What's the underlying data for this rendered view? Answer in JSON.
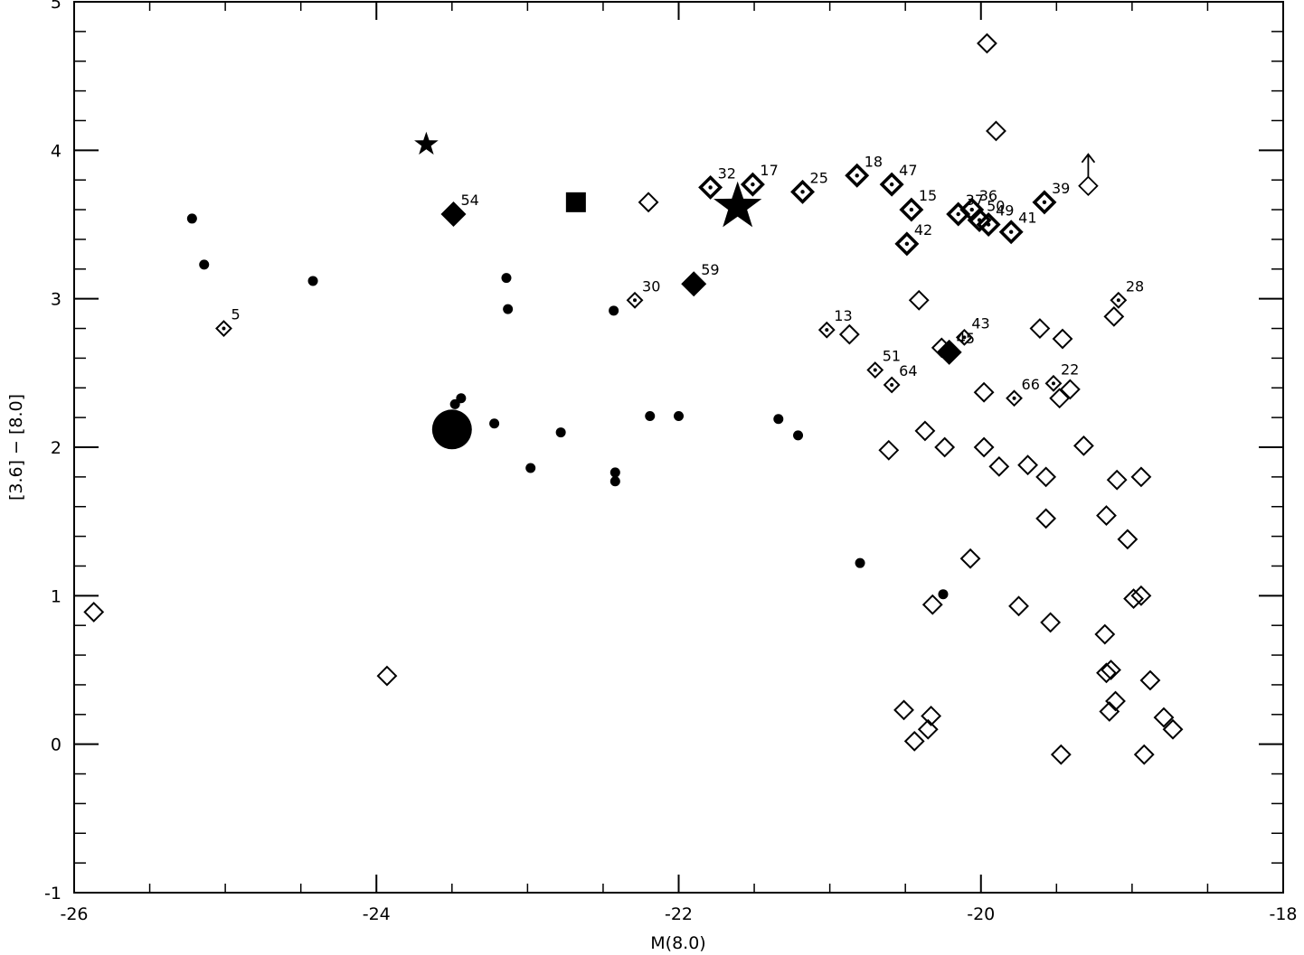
{
  "chart_data": {
    "type": "scatter",
    "xlabel": "M(8.0)",
    "ylabel": "[3.6] − [8.0]",
    "xlim": [
      -26,
      -18
    ],
    "ylim": [
      -1,
      5
    ],
    "xticks": [
      -26,
      -24,
      -22,
      -20,
      -18
    ],
    "yticks": [
      -1,
      0,
      1,
      2,
      3,
      4,
      5
    ],
    "series": [
      {
        "marker": "dot",
        "color": "#000000",
        "x": [
          -25.22,
          -25.14,
          -24.42,
          -23.48,
          -23.44,
          -23.22,
          -23.14,
          -23.13,
          -22.98,
          -22.78,
          -22.43,
          -22.42,
          -22.42,
          -22.19,
          -22.0,
          -21.34,
          -21.21,
          -20.8,
          -20.25
        ],
        "values": [
          3.54,
          3.23,
          3.12,
          2.29,
          2.33,
          2.16,
          3.14,
          2.93,
          1.86,
          2.1,
          2.92,
          1.83,
          1.77,
          2.21,
          2.21,
          2.19,
          2.08,
          1.22,
          1.01
        ]
      },
      {
        "marker": "open-diamond",
        "color": "#000000",
        "x": [
          -25.87,
          -23.93,
          -22.2,
          -19.96,
          -19.9,
          -20.41,
          -20.87,
          -19.61,
          -19.46,
          -19.12,
          -20.26,
          -19.98,
          -19.48,
          -19.41,
          -20.61,
          -20.37,
          -20.24,
          -19.98,
          -19.88,
          -19.69,
          -19.57,
          -19.32,
          -19.1,
          -18.94,
          -19.57,
          -19.17,
          -19.03,
          -20.07,
          -20.32,
          -19.75,
          -18.99,
          -18.94,
          -19.54,
          -19.18,
          -19.17,
          -19.14,
          -18.88,
          -19.11,
          -19.15,
          -20.51,
          -20.33,
          -20.35,
          -20.44,
          -18.79,
          -18.73,
          -19.47,
          -18.92
        ],
        "values": [
          0.89,
          0.46,
          3.65,
          4.72,
          4.13,
          2.99,
          2.76,
          2.8,
          2.73,
          2.88,
          2.67,
          2.37,
          2.33,
          2.39,
          1.98,
          2.11,
          2.0,
          2.0,
          1.87,
          1.88,
          1.8,
          2.01,
          1.78,
          1.8,
          1.52,
          1.54,
          1.38,
          1.25,
          0.94,
          0.93,
          0.98,
          1.0,
          0.82,
          0.74,
          0.48,
          0.5,
          0.43,
          0.29,
          0.22,
          0.23,
          0.19,
          0.1,
          0.02,
          0.18,
          0.1,
          -0.07,
          -0.07
        ]
      },
      {
        "marker": "lower-limit-diamond",
        "color": "#000000",
        "x": [
          -19.29
        ],
        "values": [
          3.76
        ]
      },
      {
        "marker": "dotted-diamond",
        "color": "#000000",
        "x": [
          -25.01,
          -22.29,
          -21.02,
          -20.7,
          -20.59,
          -20.11,
          -19.78,
          -19.52,
          -19.09
        ],
        "values": [
          2.8,
          2.99,
          2.79,
          2.52,
          2.42,
          2.74,
          2.33,
          2.43,
          2.99
        ],
        "labels": [
          "5",
          "30",
          "13",
          "51",
          "64",
          "43",
          "66",
          "22",
          "28"
        ]
      },
      {
        "marker": "bold-dotted-diamond",
        "color": "#000000",
        "x": [
          -21.79,
          -21.51,
          -21.18,
          -20.82,
          -20.59,
          -20.46,
          -20.49,
          -20.15,
          -20.06,
          -20.01,
          -19.95,
          -19.8,
          -19.58
        ],
        "values": [
          3.75,
          3.77,
          3.72,
          3.83,
          3.77,
          3.6,
          3.37,
          3.57,
          3.6,
          3.53,
          3.5,
          3.45,
          3.65
        ],
        "labels": [
          "32",
          "17",
          "25",
          "18",
          "47",
          "15",
          "42",
          "37",
          "36",
          "50",
          "49",
          "41",
          "39"
        ]
      },
      {
        "marker": "filled-diamond",
        "color": "#000000",
        "x": [
          -23.49,
          -21.9,
          -20.21
        ],
        "values": [
          3.57,
          3.1,
          2.64
        ],
        "labels": [
          "54",
          "59",
          "45"
        ]
      },
      {
        "marker": "small-star",
        "color": "#000000",
        "x": [
          -23.67
        ],
        "values": [
          4.04
        ]
      },
      {
        "marker": "big-star",
        "color": "#000000",
        "x": [
          -21.61
        ],
        "values": [
          3.62
        ]
      },
      {
        "marker": "square",
        "color": "#000000",
        "x": [
          -22.68
        ],
        "values": [
          3.65
        ]
      },
      {
        "marker": "big-circle",
        "color": "#000000",
        "x": [
          -23.5
        ],
        "values": [
          2.12
        ]
      }
    ]
  }
}
